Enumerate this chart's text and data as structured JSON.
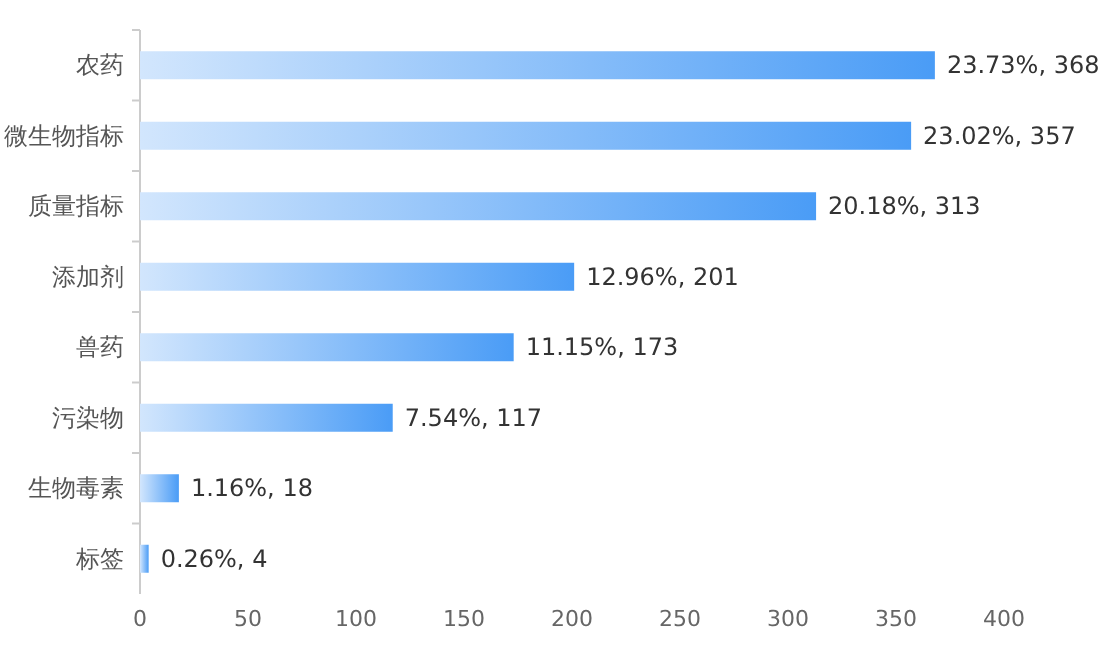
{
  "chart_data": {
    "type": "bar",
    "orientation": "horizontal",
    "categories": [
      "农药",
      "微生物指标",
      "质量指标",
      "添加剂",
      "兽药",
      "污染物",
      "生物毒素",
      "标签"
    ],
    "values": [
      368,
      357,
      313,
      201,
      173,
      117,
      18,
      4
    ],
    "value_labels": [
      "23.73%, 368",
      "23.02%, 357",
      "20.18%, 313",
      "12.96%, 201",
      "11.15%, 173",
      "7.54%, 117",
      "1.16%, 18",
      "0.26%, 4"
    ],
    "color": "#4a9cf6",
    "xlim": [
      0,
      400
    ],
    "xticks": [
      0,
      50,
      100,
      150,
      200,
      250,
      300,
      350,
      400
    ]
  }
}
